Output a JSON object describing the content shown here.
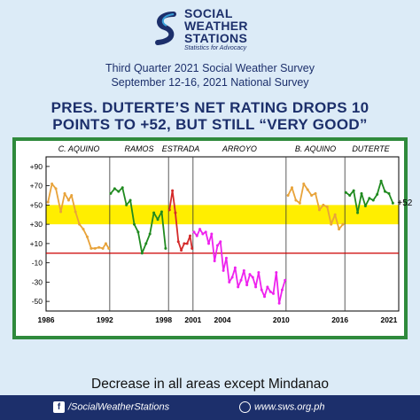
{
  "logo": {
    "line1": "SOCIAL",
    "line2": "WEATHER",
    "line3": "STATIONS",
    "tagline": "Statistics for Advocacy"
  },
  "subtitle": {
    "line1": "Third Quarter 2021 Social Weather Survey",
    "line2": "September 12-16, 2021 National Survey"
  },
  "headline": {
    "line1": "PRES. DUTERTE’S NET RATING DROPS 10",
    "line2": "POINTS TO +52, BUT STILL “VERY GOOD”"
  },
  "bottom_title": "Decrease in all areas except Mindanao",
  "footer": {
    "facebook": "/SocialWeatherStations",
    "website": "www.sws.org.ph"
  },
  "colors": {
    "navy": "#1c2f6b",
    "frame": "#2f8a3c",
    "band": "#ffee00",
    "zero_line": "#cc0000",
    "aquino1": "#e8a33a",
    "ramos": "#1f8a1f",
    "estrada": "#d42a2a",
    "arroyo": "#ee22ee",
    "aquino2": "#e8a33a",
    "duterte": "#1f8a1f"
  },
  "chart_data": {
    "type": "line",
    "title": "",
    "xlabel": "",
    "ylabel": "",
    "xlim": [
      1986,
      2022
    ],
    "ylim": [
      -60,
      100
    ],
    "x_ticks": [
      "1986",
      "1992",
      "1998",
      "2001",
      "2004",
      "2010",
      "2016",
      "2021"
    ],
    "y_ticks": [
      "+90",
      "+70",
      "+50",
      "+30",
      "+10",
      "-10",
      "-30",
      "-50"
    ],
    "band": [
      30,
      50
    ],
    "presidents": [
      {
        "label": "C. AQUINO",
        "start": 1986.2,
        "end": 1992.5
      },
      {
        "label": "RAMOS",
        "start": 1992.5,
        "end": 1998.5
      },
      {
        "label": "ESTRADA",
        "start": 1998.5,
        "end": 2001.0
      },
      {
        "label": "ARROYO",
        "start": 2001.0,
        "end": 2010.5
      },
      {
        "label": "B. AQUINO",
        "start": 2010.5,
        "end": 2016.5
      },
      {
        "label": "DUTERTE",
        "start": 2016.5,
        "end": 2021.8
      }
    ],
    "series": [
      {
        "color": "aquino1",
        "x": [
          1986.2,
          1986.6,
          1987.0,
          1987.5,
          1987.9,
          1988.3,
          1988.6,
          1989.0,
          1989.4,
          1989.8,
          1990.2,
          1990.6,
          1991.0,
          1991.4,
          1991.8,
          1992.1,
          1992.4
        ],
        "y": [
          53,
          72,
          67,
          43,
          62,
          55,
          60,
          43,
          30,
          25,
          17,
          5,
          5,
          6,
          5,
          10,
          5
        ]
      },
      {
        "color": "ramos",
        "x": [
          1992.6,
          1993.0,
          1993.4,
          1993.8,
          1994.2,
          1994.6,
          1995.0,
          1995.4,
          1995.8,
          1996.2,
          1996.6,
          1997.0,
          1997.4,
          1997.8,
          1998.2
        ],
        "y": [
          62,
          67,
          64,
          68,
          50,
          55,
          30,
          22,
          0,
          10,
          20,
          42,
          35,
          43,
          5
        ]
      },
      {
        "color": "estrada",
        "x": [
          1998.6,
          1998.9,
          1999.2,
          1999.5,
          1999.8,
          2000.1,
          2000.4,
          2000.7,
          2000.9
        ],
        "y": [
          45,
          65,
          42,
          12,
          3,
          10,
          10,
          18,
          5
        ]
      },
      {
        "color": "arroyo",
        "x": [
          2001.1,
          2001.4,
          2001.7,
          2002.0,
          2002.3,
          2002.6,
          2002.9,
          2003.2,
          2003.5,
          2003.8,
          2004.1,
          2004.4,
          2004.7,
          2005.0,
          2005.3,
          2005.6,
          2005.9,
          2006.2,
          2006.5,
          2006.8,
          2007.1,
          2007.4,
          2007.7,
          2008.0,
          2008.3,
          2008.6,
          2008.9,
          2009.2,
          2009.5,
          2009.8,
          2010.1,
          2010.4
        ],
        "y": [
          22,
          18,
          25,
          20,
          22,
          10,
          20,
          -8,
          8,
          12,
          -18,
          -5,
          -30,
          -25,
          -15,
          -35,
          -28,
          -18,
          -33,
          -22,
          -25,
          -35,
          -20,
          -38,
          -45,
          -35,
          -40,
          -42,
          -20,
          -52,
          -38,
          -28
        ]
      },
      {
        "color": "aquino2",
        "x": [
          2010.7,
          2011.1,
          2011.5,
          2011.9,
          2012.3,
          2012.7,
          2013.1,
          2013.5,
          2013.9,
          2014.3,
          2014.7,
          2015.1,
          2015.5,
          2015.9,
          2016.3
        ],
        "y": [
          60,
          68,
          55,
          52,
          72,
          66,
          60,
          62,
          45,
          50,
          48,
          30,
          40,
          25,
          30
        ]
      },
      {
        "color": "duterte",
        "x": [
          2016.6,
          2017.0,
          2017.4,
          2017.8,
          2018.2,
          2018.6,
          2019.0,
          2019.4,
          2019.8,
          2020.2,
          2020.6,
          2021.0,
          2021.4
        ],
        "y": [
          63,
          60,
          65,
          42,
          62,
          49,
          57,
          55,
          61,
          75,
          64,
          62,
          52
        ]
      }
    ],
    "annotations": [
      {
        "text": "+52",
        "x": 2021.4,
        "y": 52
      }
    ]
  }
}
